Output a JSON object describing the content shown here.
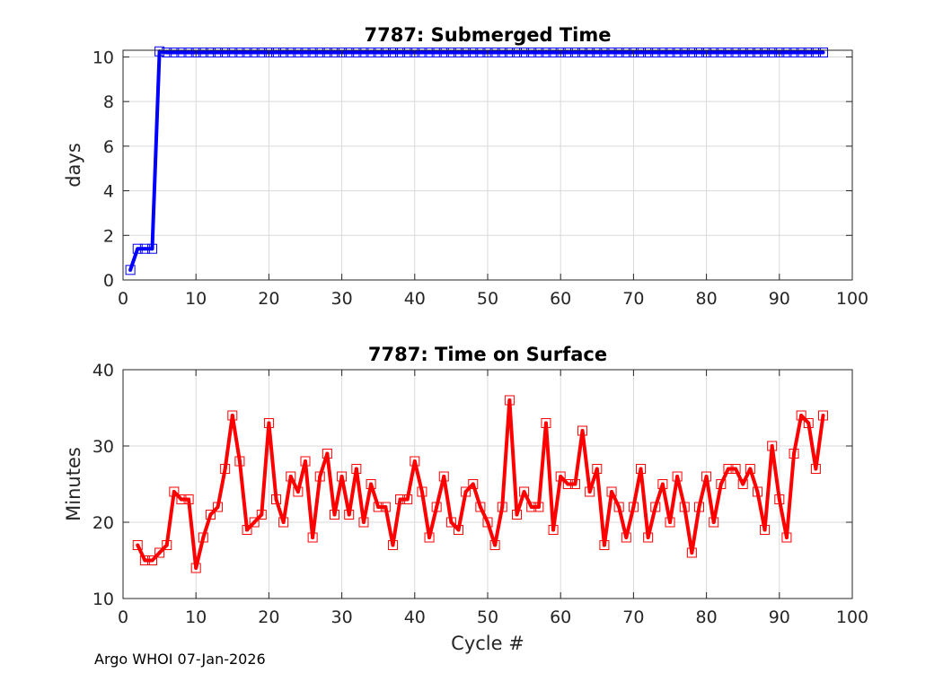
{
  "footer": "Argo WHOI 07-Jan-2026",
  "chart_data": [
    {
      "type": "line",
      "title": "7787: Submerged Time",
      "xlabel": "",
      "ylabel": "days",
      "xlim": [
        0,
        100
      ],
      "ylim": [
        0,
        10.3
      ],
      "xticks": [
        0,
        10,
        20,
        30,
        40,
        50,
        60,
        70,
        80,
        90,
        100
      ],
      "yticks": [
        0,
        2,
        4,
        6,
        8,
        10
      ],
      "grid": true,
      "color": "#0000ff",
      "marker": "square",
      "x": [
        1,
        2,
        3,
        4,
        5,
        6,
        7,
        8,
        9,
        10,
        11,
        12,
        13,
        14,
        15,
        16,
        17,
        18,
        19,
        20,
        21,
        22,
        23,
        24,
        25,
        26,
        27,
        28,
        29,
        30,
        31,
        32,
        33,
        34,
        35,
        36,
        37,
        38,
        39,
        40,
        41,
        42,
        43,
        44,
        45,
        46,
        47,
        48,
        49,
        50,
        51,
        52,
        53,
        54,
        55,
        56,
        57,
        58,
        59,
        60,
        61,
        62,
        63,
        64,
        65,
        66,
        67,
        68,
        69,
        70,
        71,
        72,
        73,
        74,
        75,
        76,
        77,
        78,
        79,
        80,
        81,
        82,
        83,
        84,
        85,
        86,
        87,
        88,
        89,
        90,
        91,
        92,
        93,
        94,
        95,
        96
      ],
      "y": [
        0.45,
        1.4,
        1.4,
        1.4,
        10.25,
        10.2,
        10.2,
        10.2,
        10.2,
        10.2,
        10.2,
        10.2,
        10.2,
        10.2,
        10.2,
        10.2,
        10.2,
        10.2,
        10.2,
        10.2,
        10.2,
        10.2,
        10.2,
        10.2,
        10.2,
        10.2,
        10.2,
        10.2,
        10.2,
        10.2,
        10.2,
        10.2,
        10.2,
        10.2,
        10.2,
        10.2,
        10.2,
        10.2,
        10.2,
        10.2,
        10.2,
        10.2,
        10.2,
        10.2,
        10.2,
        10.2,
        10.2,
        10.2,
        10.2,
        10.2,
        10.2,
        10.2,
        10.2,
        10.2,
        10.2,
        10.2,
        10.2,
        10.2,
        10.2,
        10.2,
        10.2,
        10.2,
        10.2,
        10.2,
        10.2,
        10.2,
        10.2,
        10.2,
        10.2,
        10.2,
        10.2,
        10.2,
        10.2,
        10.2,
        10.2,
        10.2,
        10.2,
        10.2,
        10.2,
        10.2,
        10.2,
        10.2,
        10.2,
        10.2,
        10.2,
        10.2,
        10.2,
        10.2,
        10.2,
        10.2,
        10.2,
        10.2,
        10.2,
        10.2,
        10.2,
        10.2
      ]
    },
    {
      "type": "line",
      "title": "7787: Time on Surface",
      "xlabel": "Cycle #",
      "ylabel": "Minutes",
      "xlim": [
        0,
        100
      ],
      "ylim": [
        10,
        40
      ],
      "xticks": [
        0,
        10,
        20,
        30,
        40,
        50,
        60,
        70,
        80,
        90,
        100
      ],
      "yticks": [
        10,
        20,
        30,
        40
      ],
      "grid": true,
      "color": "#ff0000",
      "marker": "square",
      "x": [
        2,
        3,
        4,
        5,
        6,
        7,
        8,
        9,
        10,
        11,
        12,
        13,
        14,
        15,
        16,
        17,
        18,
        19,
        20,
        21,
        22,
        23,
        24,
        25,
        26,
        27,
        28,
        29,
        30,
        31,
        32,
        33,
        34,
        35,
        36,
        37,
        38,
        39,
        40,
        41,
        42,
        43,
        44,
        45,
        46,
        47,
        48,
        49,
        50,
        51,
        52,
        53,
        54,
        55,
        56,
        57,
        58,
        59,
        60,
        61,
        62,
        63,
        64,
        65,
        66,
        67,
        68,
        69,
        70,
        71,
        72,
        73,
        74,
        75,
        76,
        77,
        78,
        79,
        80,
        81,
        82,
        83,
        84,
        85,
        86,
        87,
        88,
        89,
        90,
        91,
        92,
        93,
        94,
        95,
        96
      ],
      "y": [
        17,
        15,
        15,
        16,
        17,
        24,
        23,
        23,
        14,
        18,
        21,
        22,
        27,
        34,
        28,
        19,
        20,
        21,
        33,
        23,
        20,
        26,
        24,
        28,
        18,
        26,
        29,
        21,
        26,
        21,
        27,
        20,
        25,
        22,
        22,
        17,
        23,
        23,
        28,
        24,
        18,
        22,
        26,
        20,
        19,
        24,
        25,
        22,
        20,
        17,
        22,
        36,
        21,
        24,
        22,
        22,
        33,
        19,
        26,
        25,
        25,
        32,
        24,
        27,
        17,
        24,
        22,
        18,
        22,
        27,
        18,
        22,
        25,
        20,
        26,
        22,
        16,
        22,
        26,
        20,
        25,
        27,
        27,
        25,
        27,
        24,
        19,
        30,
        23,
        18,
        29,
        34,
        33,
        27,
        34
      ]
    }
  ]
}
